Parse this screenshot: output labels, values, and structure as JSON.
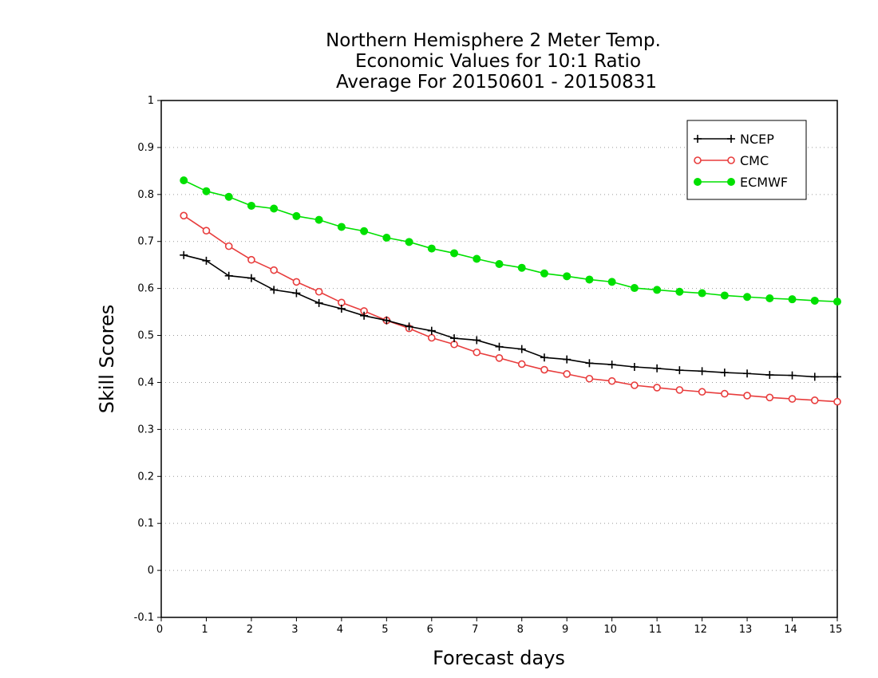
{
  "chart_data": {
    "type": "line",
    "title_lines": [
      "Northern Hemisphere 2 Meter Temp.",
      "Economic Values for 10:1 Ratio",
      "Average For 20150601 - 20150831"
    ],
    "xlabel": "Forecast days",
    "ylabel": "Skill Scores",
    "xlim": [
      0,
      15
    ],
    "ylim": [
      -0.1,
      1
    ],
    "x_ticks": [
      "0",
      "1",
      "2",
      "3",
      "4",
      "5",
      "6",
      "7",
      "8",
      "9",
      "10",
      "11",
      "12",
      "13",
      "14",
      "15"
    ],
    "y_ticks": [
      "-0.1",
      "0",
      "0.1",
      "0.2",
      "0.3",
      "0.4",
      "0.5",
      "0.6",
      "0.7",
      "0.8",
      "0.9",
      "1"
    ],
    "grid": "horizontal dotted",
    "legend_position": "top-right",
    "x": [
      0.5,
      1,
      1.5,
      2,
      2.5,
      3,
      3.5,
      4,
      4.5,
      5,
      5.5,
      6,
      6.5,
      7,
      7.5,
      8,
      8.5,
      9,
      9.5,
      10,
      10.5,
      11,
      11.5,
      12,
      12.5,
      13,
      13.5,
      14,
      14.5,
      15
    ],
    "series": [
      {
        "name": "NCEP",
        "color": "#000000",
        "marker": "plus",
        "values": [
          0.671,
          0.659,
          0.627,
          0.622,
          0.597,
          0.59,
          0.569,
          0.557,
          0.542,
          0.532,
          0.519,
          0.51,
          0.494,
          0.49,
          0.476,
          0.471,
          0.453,
          0.449,
          0.441,
          0.438,
          0.433,
          0.43,
          0.426,
          0.424,
          0.421,
          0.419,
          0.416,
          0.415,
          0.412,
          0.412
        ]
      },
      {
        "name": "CMC",
        "color": "#e83c3c",
        "marker": "open-circle",
        "values": [
          0.755,
          0.723,
          0.69,
          0.661,
          0.639,
          0.614,
          0.593,
          0.57,
          0.552,
          0.532,
          0.515,
          0.495,
          0.481,
          0.464,
          0.452,
          0.439,
          0.427,
          0.418,
          0.408,
          0.403,
          0.394,
          0.389,
          0.384,
          0.38,
          0.376,
          0.372,
          0.368,
          0.365,
          0.362,
          0.359
        ]
      },
      {
        "name": "ECMWF",
        "color": "#00e000",
        "marker": "filled-circle",
        "values": [
          0.83,
          0.807,
          0.795,
          0.776,
          0.77,
          0.754,
          0.746,
          0.731,
          0.722,
          0.708,
          0.699,
          0.685,
          0.675,
          0.663,
          0.652,
          0.644,
          0.632,
          0.626,
          0.619,
          0.614,
          0.601,
          0.597,
          0.593,
          0.59,
          0.585,
          0.582,
          0.579,
          0.577,
          0.574,
          0.572
        ]
      }
    ]
  }
}
